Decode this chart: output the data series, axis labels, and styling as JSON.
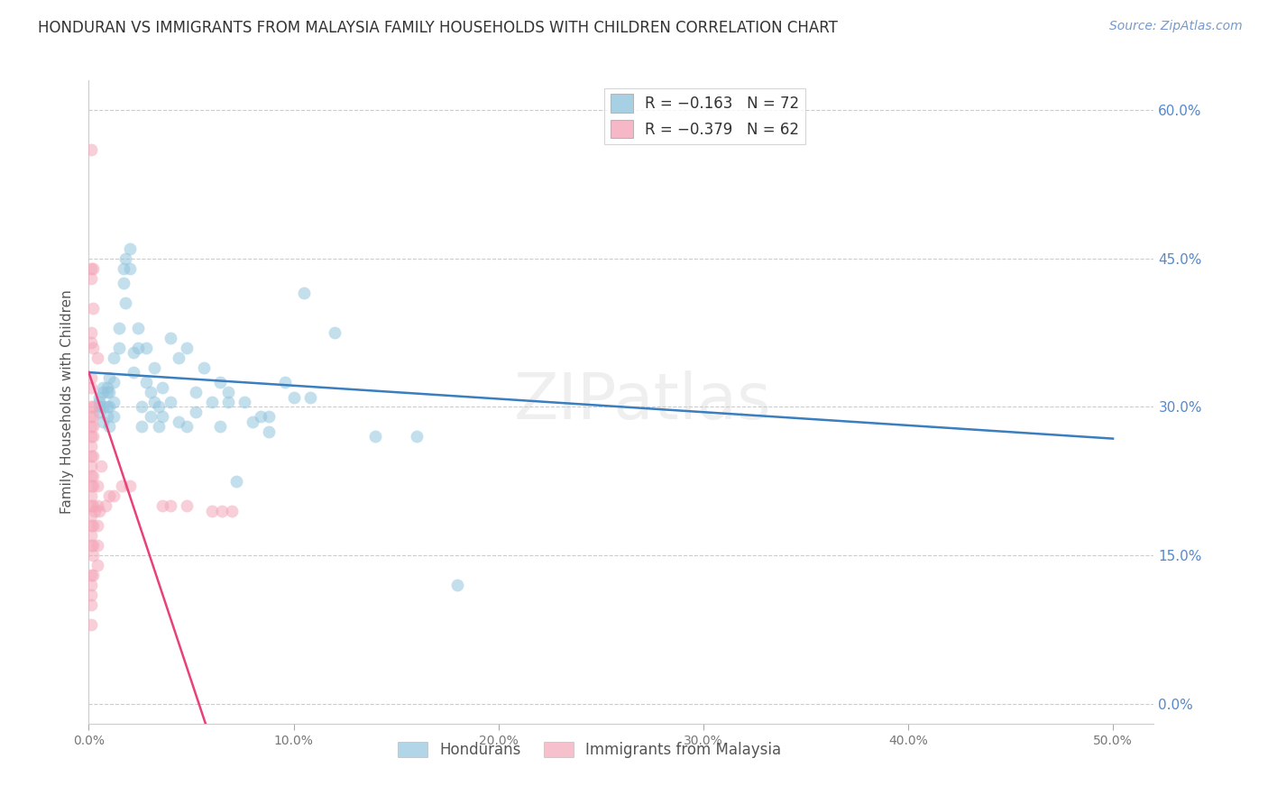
{
  "title": "HONDURAN VS IMMIGRANTS FROM MALAYSIA FAMILY HOUSEHOLDS WITH CHILDREN CORRELATION CHART",
  "source": "Source: ZipAtlas.com",
  "ylabel": "Family Households with Children",
  "watermark": "ZIPatlas",
  "x_ticks": [
    0.0,
    0.1,
    0.2,
    0.3,
    0.4,
    0.5
  ],
  "x_tick_labels": [
    "0.0%",
    "10.0%",
    "20.0%",
    "30.0%",
    "40.0%",
    "50.0%"
  ],
  "y_ticks": [
    0.0,
    0.15,
    0.3,
    0.45,
    0.6
  ],
  "y_tick_labels": [
    "0.0%",
    "15.0%",
    "30.0%",
    "45.0%",
    "60.0%"
  ],
  "xlim": [
    0.0,
    0.52
  ],
  "ylim": [
    -0.02,
    0.63
  ],
  "legend_entries": [
    {
      "label": "R = −0.163   N = 72",
      "color": "#92c5de"
    },
    {
      "label": "R = −0.379   N = 62",
      "color": "#f4a6b8"
    }
  ],
  "honduran_color": "#92c5de",
  "malaysia_color": "#f4a6b8",
  "honduran_line_color": "#3a7ebf",
  "malaysia_line_color": "#e8407a",
  "honduran_scatter": [
    [
      0.005,
      0.305
    ],
    [
      0.005,
      0.295
    ],
    [
      0.005,
      0.31
    ],
    [
      0.005,
      0.3
    ],
    [
      0.007,
      0.32
    ],
    [
      0.007,
      0.315
    ],
    [
      0.007,
      0.285
    ],
    [
      0.007,
      0.3
    ],
    [
      0.009,
      0.315
    ],
    [
      0.009,
      0.3
    ],
    [
      0.009,
      0.32
    ],
    [
      0.009,
      0.29
    ],
    [
      0.01,
      0.33
    ],
    [
      0.01,
      0.3
    ],
    [
      0.01,
      0.28
    ],
    [
      0.01,
      0.315
    ],
    [
      0.012,
      0.325
    ],
    [
      0.012,
      0.35
    ],
    [
      0.012,
      0.29
    ],
    [
      0.012,
      0.305
    ],
    [
      0.015,
      0.36
    ],
    [
      0.015,
      0.38
    ],
    [
      0.017,
      0.425
    ],
    [
      0.017,
      0.44
    ],
    [
      0.018,
      0.45
    ],
    [
      0.018,
      0.405
    ],
    [
      0.02,
      0.46
    ],
    [
      0.02,
      0.44
    ],
    [
      0.022,
      0.335
    ],
    [
      0.022,
      0.355
    ],
    [
      0.024,
      0.38
    ],
    [
      0.024,
      0.36
    ],
    [
      0.026,
      0.3
    ],
    [
      0.026,
      0.28
    ],
    [
      0.028,
      0.36
    ],
    [
      0.028,
      0.325
    ],
    [
      0.03,
      0.315
    ],
    [
      0.03,
      0.29
    ],
    [
      0.032,
      0.34
    ],
    [
      0.032,
      0.305
    ],
    [
      0.034,
      0.28
    ],
    [
      0.034,
      0.3
    ],
    [
      0.036,
      0.32
    ],
    [
      0.036,
      0.29
    ],
    [
      0.04,
      0.37
    ],
    [
      0.04,
      0.305
    ],
    [
      0.044,
      0.35
    ],
    [
      0.044,
      0.285
    ],
    [
      0.048,
      0.36
    ],
    [
      0.048,
      0.28
    ],
    [
      0.052,
      0.295
    ],
    [
      0.052,
      0.315
    ],
    [
      0.056,
      0.34
    ],
    [
      0.06,
      0.305
    ],
    [
      0.064,
      0.325
    ],
    [
      0.064,
      0.28
    ],
    [
      0.068,
      0.315
    ],
    [
      0.068,
      0.305
    ],
    [
      0.072,
      0.225
    ],
    [
      0.076,
      0.305
    ],
    [
      0.08,
      0.285
    ],
    [
      0.084,
      0.29
    ],
    [
      0.088,
      0.29
    ],
    [
      0.088,
      0.275
    ],
    [
      0.096,
      0.325
    ],
    [
      0.1,
      0.31
    ],
    [
      0.105,
      0.415
    ],
    [
      0.108,
      0.31
    ],
    [
      0.12,
      0.375
    ],
    [
      0.14,
      0.27
    ],
    [
      0.16,
      0.27
    ],
    [
      0.18,
      0.12
    ]
  ],
  "malaysia_scatter": [
    [
      0.001,
      0.56
    ],
    [
      0.001,
      0.44
    ],
    [
      0.001,
      0.43
    ],
    [
      0.001,
      0.375
    ],
    [
      0.001,
      0.365
    ],
    [
      0.001,
      0.33
    ],
    [
      0.001,
      0.32
    ],
    [
      0.001,
      0.3
    ],
    [
      0.001,
      0.29
    ],
    [
      0.001,
      0.28
    ],
    [
      0.001,
      0.27
    ],
    [
      0.001,
      0.26
    ],
    [
      0.001,
      0.25
    ],
    [
      0.001,
      0.24
    ],
    [
      0.001,
      0.23
    ],
    [
      0.001,
      0.22
    ],
    [
      0.001,
      0.21
    ],
    [
      0.001,
      0.2
    ],
    [
      0.001,
      0.19
    ],
    [
      0.001,
      0.18
    ],
    [
      0.001,
      0.17
    ],
    [
      0.001,
      0.16
    ],
    [
      0.001,
      0.13
    ],
    [
      0.001,
      0.12
    ],
    [
      0.001,
      0.11
    ],
    [
      0.001,
      0.1
    ],
    [
      0.001,
      0.08
    ],
    [
      0.002,
      0.44
    ],
    [
      0.002,
      0.4
    ],
    [
      0.002,
      0.36
    ],
    [
      0.002,
      0.3
    ],
    [
      0.002,
      0.29
    ],
    [
      0.002,
      0.28
    ],
    [
      0.002,
      0.27
    ],
    [
      0.002,
      0.25
    ],
    [
      0.002,
      0.23
    ],
    [
      0.002,
      0.22
    ],
    [
      0.002,
      0.2
    ],
    [
      0.002,
      0.18
    ],
    [
      0.002,
      0.16
    ],
    [
      0.002,
      0.15
    ],
    [
      0.002,
      0.13
    ],
    [
      0.004,
      0.35
    ],
    [
      0.004,
      0.22
    ],
    [
      0.004,
      0.2
    ],
    [
      0.004,
      0.18
    ],
    [
      0.004,
      0.16
    ],
    [
      0.004,
      0.14
    ],
    [
      0.006,
      0.24
    ],
    [
      0.008,
      0.2
    ],
    [
      0.01,
      0.21
    ],
    [
      0.012,
      0.21
    ],
    [
      0.016,
      0.22
    ],
    [
      0.02,
      0.22
    ],
    [
      0.036,
      0.2
    ],
    [
      0.04,
      0.2
    ],
    [
      0.048,
      0.2
    ],
    [
      0.06,
      0.195
    ],
    [
      0.065,
      0.195
    ],
    [
      0.07,
      0.195
    ],
    [
      0.005,
      0.195
    ],
    [
      0.003,
      0.195
    ]
  ],
  "honduran_line_x": [
    0.0,
    0.5
  ],
  "honduran_line_y": [
    0.335,
    0.268
  ],
  "malaysia_line_x": [
    0.0,
    0.057
  ],
  "malaysia_line_y": [
    0.335,
    -0.02
  ]
}
